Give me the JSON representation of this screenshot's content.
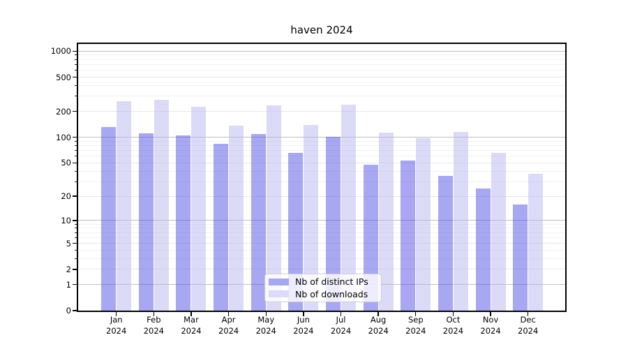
{
  "chart_data": {
    "type": "bar",
    "title": "haven 2024",
    "categories": [
      "Jan",
      "Feb",
      "Mar",
      "Apr",
      "May",
      "Jun",
      "Jul",
      "Aug",
      "Sep",
      "Oct",
      "Nov",
      "Dec"
    ],
    "x_year_line": "2024",
    "series": [
      {
        "name": "Nb of distinct IPs",
        "legend_color": "#a7a7f1",
        "bar_fill": "rgba(79,79,229,0.5)",
        "values": [
          132,
          111,
          106,
          84,
          110,
          66,
          101,
          48,
          53,
          35,
          25,
          16
        ]
      },
      {
        "name": "Nb of downloads",
        "legend_color": "#dbdbf9",
        "bar_fill": "rgba(183,183,241,0.5)",
        "values": [
          263,
          271,
          228,
          137,
          236,
          139,
          239,
          113,
          97,
          115,
          66,
          37
        ]
      }
    ],
    "y_scale": "log1p",
    "y_ticks": [
      0,
      1,
      2,
      5,
      10,
      20,
      50,
      100,
      200,
      500,
      1000
    ],
    "y_major_gridlines": [
      1,
      10,
      100,
      1000
    ],
    "ylim": [
      0,
      1211
    ],
    "grid": true,
    "legend_position": "lower center"
  }
}
